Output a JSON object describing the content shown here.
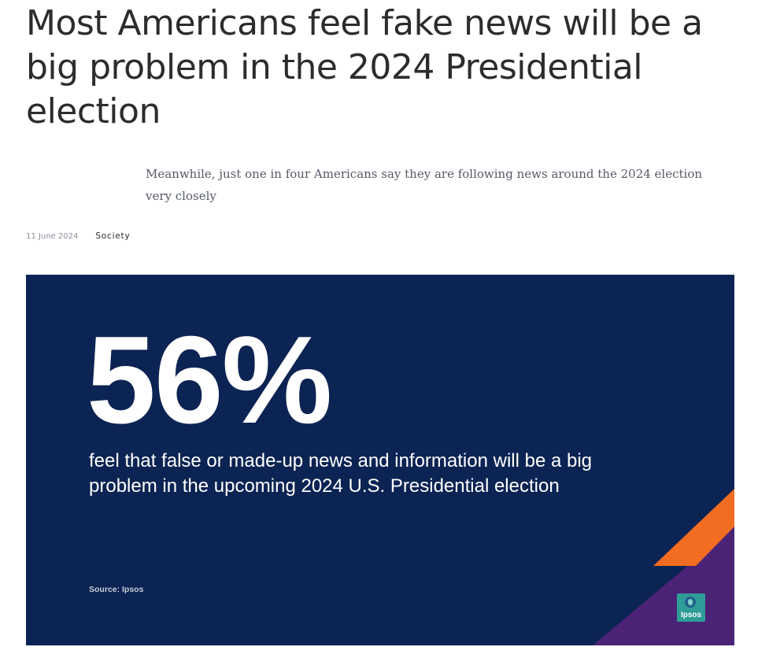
{
  "article": {
    "headline": "Most Americans feel fake news will be a big problem in the 2024 Presidential election",
    "standfirst": "Meanwhile, just one in four Americans say they are following news around the 2024 election very closely",
    "date": "11 June 2024",
    "category": "Society"
  },
  "hero": {
    "stat": "56%",
    "caption": "feel that false or made-up news and information will be a big problem in the upcoming 2024 U.S. Presidential election",
    "source": "Source: Ipsos",
    "logo_text": "Ipsos",
    "colors": {
      "background": "#0c2453",
      "accent_orange": "#f26d21",
      "accent_purple": "#4a2377",
      "logo_teal": "#2e9c97"
    }
  }
}
